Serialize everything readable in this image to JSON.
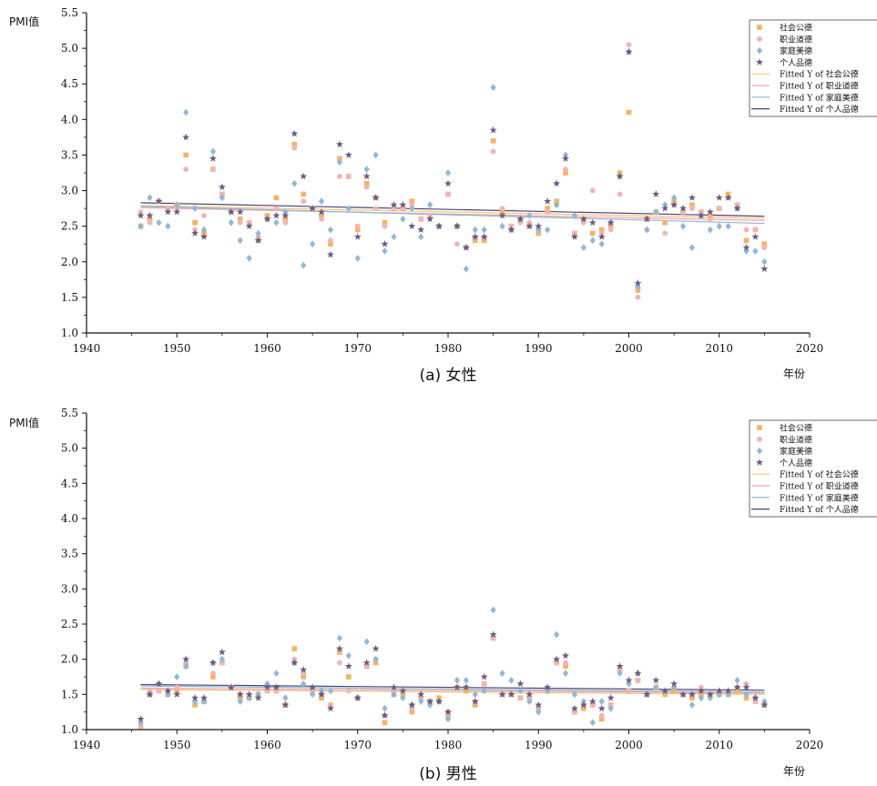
{
  "chart_data": [
    {
      "type": "scatter",
      "caption": "(a) 女性",
      "xlabel": "年份",
      "ylabel": "PMI值",
      "xlim": [
        1940,
        2020
      ],
      "ylim": [
        1.0,
        5.5
      ],
      "xticks": [
        "1940",
        "1950",
        "1960",
        "1970",
        "1980",
        "1990",
        "2000",
        "2010",
        "2020"
      ],
      "yticks": [
        "1.0",
        "1.5",
        "2.0",
        "2.5",
        "3.0",
        "3.5",
        "4.0",
        "4.5",
        "5.0",
        "5.5"
      ],
      "legend_position": "top-right",
      "x": [
        1946,
        1947,
        1948,
        1949,
        1950,
        1951,
        1952,
        1953,
        1954,
        1955,
        1956,
        1957,
        1958,
        1959,
        1960,
        1961,
        1962,
        1963,
        1964,
        1965,
        1966,
        1967,
        1968,
        1969,
        1970,
        1971,
        1972,
        1973,
        1974,
        1975,
        1976,
        1977,
        1978,
        1979,
        1980,
        1981,
        1982,
        1983,
        1984,
        1985,
        1986,
        1987,
        1988,
        1989,
        1990,
        1991,
        1992,
        1993,
        1994,
        1995,
        1996,
        1997,
        1998,
        1999,
        2000,
        2001,
        2002,
        2003,
        2004,
        2005,
        2006,
        2007,
        2008,
        2009,
        2010,
        2011,
        2012,
        2013,
        2014,
        2015
      ],
      "series": [
        {
          "name": "社会公德",
          "marker": "square",
          "color": "#f5b362",
          "values": [
            2.5,
            2.6,
            2.85,
            2.75,
            2.8,
            3.5,
            2.55,
            2.4,
            3.3,
            2.95,
            2.7,
            2.6,
            2.55,
            2.3,
            2.65,
            2.9,
            2.6,
            3.65,
            2.95,
            2.75,
            2.65,
            2.25,
            3.45,
            3.2,
            2.45,
            3.1,
            2.9,
            2.55,
            2.75,
            2.75,
            2.85,
            2.6,
            2.65,
            2.5,
            2.95,
            2.5,
            2.2,
            2.3,
            2.3,
            3.7,
            2.7,
            2.5,
            2.6,
            2.5,
            2.4,
            2.75,
            2.85,
            3.25,
            2.4,
            2.6,
            2.4,
            2.45,
            2.5,
            3.25,
            4.1,
            1.6,
            2.6,
            2.7,
            2.55,
            2.85,
            2.7,
            2.8,
            2.7,
            2.65,
            2.75,
            2.95,
            2.8,
            2.3,
            2.45,
            2.25
          ]
        },
        {
          "name": "职业道德",
          "marker": "circle",
          "color": "#f2b3b8",
          "values": [
            2.7,
            2.55,
            2.85,
            2.75,
            2.75,
            3.3,
            2.45,
            2.65,
            3.3,
            2.95,
            2.7,
            2.55,
            2.55,
            2.35,
            2.6,
            2.75,
            2.55,
            3.6,
            2.85,
            2.75,
            2.6,
            2.3,
            3.2,
            3.2,
            2.5,
            3.05,
            2.75,
            2.5,
            2.75,
            2.75,
            2.8,
            2.6,
            2.65,
            2.5,
            2.95,
            2.25,
            2.2,
            2.35,
            2.35,
            3.55,
            2.75,
            2.5,
            2.55,
            2.55,
            2.45,
            2.7,
            2.8,
            3.3,
            2.4,
            2.55,
            3.0,
            2.4,
            2.45,
            2.95,
            5.05,
            1.5,
            2.45,
            2.7,
            2.4,
            2.8,
            2.7,
            2.75,
            2.7,
            2.6,
            2.75,
            2.9,
            2.8,
            2.45,
            2.45,
            2.2
          ]
        },
        {
          "name": "家庭美德",
          "marker": "diamond",
          "color": "#8fb8d8",
          "values": [
            2.5,
            2.9,
            2.55,
            2.5,
            2.8,
            4.1,
            2.75,
            2.45,
            3.55,
            2.9,
            2.55,
            2.3,
            2.05,
            2.4,
            2.6,
            2.55,
            2.7,
            3.1,
            1.95,
            2.25,
            2.85,
            2.45,
            3.4,
            2.75,
            2.05,
            3.3,
            3.5,
            2.15,
            2.35,
            2.6,
            2.75,
            2.35,
            2.8,
            2.5,
            3.25,
            2.5,
            1.9,
            2.45,
            2.45,
            4.45,
            2.5,
            2.45,
            2.6,
            2.65,
            2.45,
            2.45,
            2.8,
            3.5,
            2.65,
            2.2,
            2.3,
            2.25,
            2.55,
            3.2,
            4.95,
            1.65,
            2.45,
            2.7,
            2.8,
            2.9,
            2.5,
            2.2,
            2.65,
            2.45,
            2.5,
            2.5,
            2.75,
            2.15,
            2.15,
            2.0
          ]
        },
        {
          "name": "个人品德",
          "marker": "star",
          "color": "#6b5a86",
          "values": [
            2.65,
            2.65,
            2.85,
            2.7,
            2.7,
            3.75,
            2.4,
            2.35,
            3.45,
            3.05,
            2.7,
            2.7,
            2.5,
            2.3,
            2.6,
            2.65,
            2.65,
            3.8,
            3.2,
            2.75,
            2.7,
            2.1,
            3.65,
            3.5,
            2.35,
            3.2,
            2.9,
            2.25,
            2.8,
            2.8,
            2.5,
            2.45,
            2.6,
            2.5,
            3.1,
            2.5,
            2.2,
            2.35,
            2.35,
            3.85,
            2.65,
            2.45,
            2.6,
            2.5,
            2.5,
            2.85,
            3.1,
            3.45,
            2.35,
            2.6,
            2.55,
            2.35,
            2.55,
            3.2,
            4.95,
            1.7,
            2.6,
            2.95,
            2.75,
            2.8,
            2.75,
            2.9,
            2.65,
            2.7,
            2.9,
            2.9,
            2.75,
            2.2,
            2.35,
            1.9
          ]
        }
      ],
      "fits": [
        {
          "name": "Fitted Y of 社会公德",
          "color": "#f5c27a",
          "y_start": 2.79,
          "y_end": 2.61
        },
        {
          "name": "Fitted Y of 职业道德",
          "color": "#f0a3a8",
          "y_start": 2.76,
          "y_end": 2.58
        },
        {
          "name": "Fitted Y of 家庭美德",
          "color": "#8ab5d0",
          "y_start": 2.78,
          "y_end": 2.54
        },
        {
          "name": "Fitted Y of 个人品德",
          "color": "#4a4478",
          "y_start": 2.83,
          "y_end": 2.64
        }
      ]
    },
    {
      "type": "scatter",
      "caption": "(b) 男性",
      "xlabel": "年份",
      "ylabel": "PMI值",
      "xlim": [
        1940,
        2020
      ],
      "ylim": [
        1.0,
        5.5
      ],
      "xticks": [
        "1940",
        "1950",
        "1960",
        "1970",
        "1980",
        "1990",
        "2000",
        "2010",
        "2020"
      ],
      "yticks": [
        "1.0",
        "1.5",
        "2.0",
        "2.5",
        "3.0",
        "3.5",
        "4.0",
        "4.5",
        "5.0",
        "5.5"
      ],
      "legend_position": "top-right",
      "x": [
        1946,
        1947,
        1948,
        1949,
        1950,
        1951,
        1952,
        1953,
        1954,
        1955,
        1956,
        1957,
        1958,
        1959,
        1960,
        1961,
        1962,
        1963,
        1964,
        1965,
        1966,
        1967,
        1968,
        1969,
        1970,
        1971,
        1972,
        1973,
        1974,
        1975,
        1976,
        1977,
        1978,
        1979,
        1980,
        1981,
        1982,
        1983,
        1984,
        1985,
        1986,
        1987,
        1988,
        1989,
        1990,
        1991,
        1992,
        1993,
        1994,
        1995,
        1996,
        1997,
        1998,
        1999,
        2000,
        2001,
        2002,
        2003,
        2004,
        2005,
        2006,
        2007,
        2008,
        2009,
        2010,
        2011,
        2012,
        2013,
        2014,
        2015
      ],
      "series": [
        {
          "name": "社会公德",
          "marker": "square",
          "color": "#f5b362",
          "values": [
            1.05,
            1.5,
            1.55,
            1.5,
            1.55,
            1.9,
            1.35,
            1.4,
            1.75,
            1.95,
            1.6,
            1.45,
            1.45,
            1.5,
            1.55,
            1.55,
            1.35,
            2.15,
            1.75,
            1.55,
            1.45,
            1.35,
            2.1,
            1.75,
            1.45,
            1.9,
            1.95,
            1.1,
            1.5,
            1.5,
            1.25,
            1.45,
            1.4,
            1.45,
            1.2,
            1.6,
            1.55,
            1.35,
            1.65,
            2.3,
            1.5,
            1.5,
            1.45,
            1.45,
            1.3,
            1.55,
            1.95,
            1.9,
            1.25,
            1.3,
            1.35,
            1.15,
            1.35,
            1.85,
            1.55,
            1.7,
            1.5,
            1.6,
            1.5,
            1.55,
            1.5,
            1.45,
            1.5,
            1.5,
            1.5,
            1.5,
            1.55,
            1.45,
            1.4,
            1.35
          ]
        },
        {
          "name": "职业道德",
          "marker": "circle",
          "color": "#f2b3b8",
          "values": [
            1.05,
            1.55,
            1.55,
            1.55,
            1.6,
            1.95,
            1.4,
            1.4,
            1.8,
            1.95,
            1.6,
            1.5,
            1.45,
            1.5,
            1.55,
            1.55,
            1.35,
            2.0,
            1.8,
            1.55,
            1.5,
            1.35,
            1.95,
            1.55,
            1.45,
            1.9,
            2.0,
            1.2,
            1.55,
            1.55,
            1.3,
            1.45,
            1.4,
            1.4,
            1.25,
            1.6,
            1.6,
            1.4,
            1.65,
            2.3,
            1.5,
            1.5,
            1.45,
            1.45,
            1.3,
            1.55,
            1.95,
            1.95,
            1.25,
            1.35,
            1.35,
            1.2,
            1.35,
            1.85,
            1.55,
            1.7,
            1.5,
            1.6,
            1.55,
            1.6,
            1.5,
            1.5,
            1.6,
            1.5,
            1.55,
            1.55,
            1.6,
            1.65,
            1.4,
            1.35
          ]
        },
        {
          "name": "家庭美德",
          "marker": "diamond",
          "color": "#8fb8d8",
          "values": [
            1.1,
            1.5,
            1.65,
            1.5,
            1.75,
            1.9,
            1.4,
            1.4,
            1.95,
            2.0,
            1.6,
            1.4,
            1.45,
            1.5,
            1.65,
            1.8,
            1.45,
            1.95,
            1.65,
            1.5,
            1.55,
            1.55,
            2.3,
            2.05,
            1.45,
            2.25,
            2.0,
            1.3,
            1.5,
            1.45,
            1.35,
            1.4,
            1.35,
            1.4,
            1.15,
            1.7,
            1.7,
            1.5,
            1.55,
            2.7,
            1.8,
            1.7,
            1.55,
            1.4,
            1.25,
            1.55,
            2.35,
            1.8,
            1.5,
            1.4,
            1.1,
            1.4,
            1.3,
            1.8,
            1.65,
            1.8,
            1.5,
            1.6,
            1.55,
            1.6,
            1.5,
            1.35,
            1.45,
            1.45,
            1.5,
            1.5,
            1.7,
            1.5,
            1.45,
            1.4
          ]
        },
        {
          "name": "个人品德",
          "marker": "star",
          "color": "#6b5a86",
          "values": [
            1.15,
            1.5,
            1.65,
            1.55,
            1.5,
            2.0,
            1.45,
            1.45,
            1.95,
            2.1,
            1.6,
            1.5,
            1.5,
            1.45,
            1.6,
            1.6,
            1.35,
            1.95,
            1.85,
            1.6,
            1.5,
            1.3,
            2.15,
            1.9,
            1.45,
            1.95,
            2.15,
            1.2,
            1.6,
            1.55,
            1.35,
            1.5,
            1.4,
            1.4,
            1.25,
            1.6,
            1.6,
            1.4,
            1.75,
            2.35,
            1.5,
            1.5,
            1.65,
            1.5,
            1.35,
            1.6,
            2.0,
            2.05,
            1.3,
            1.35,
            1.4,
            1.3,
            1.45,
            1.9,
            1.7,
            1.8,
            1.5,
            1.7,
            1.55,
            1.65,
            1.5,
            1.5,
            1.55,
            1.5,
            1.55,
            1.55,
            1.6,
            1.6,
            1.45,
            1.35
          ]
        }
      ],
      "fits": [
        {
          "name": "Fitted Y of 社会公德",
          "color": "#f5c27a",
          "y_start": 1.57,
          "y_end": 1.5
        },
        {
          "name": "Fitted Y of 职业道德",
          "color": "#f0a3a8",
          "y_start": 1.59,
          "y_end": 1.52
        },
        {
          "name": "Fitted Y of 家庭美德",
          "color": "#8ab5d0",
          "y_start": 1.62,
          "y_end": 1.53
        },
        {
          "name": "Fitted Y of 个人品德",
          "color": "#4a4478",
          "y_start": 1.64,
          "y_end": 1.56
        }
      ]
    }
  ]
}
